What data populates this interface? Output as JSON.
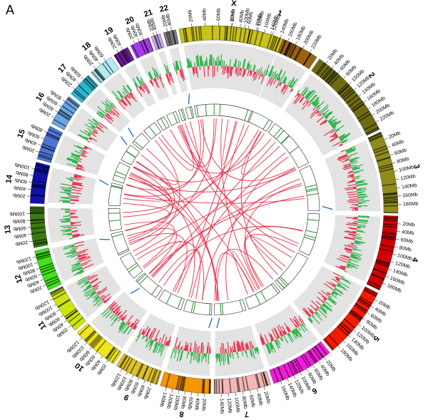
{
  "panel_label": "A",
  "chromosomes": [
    {
      "label": "1",
      "color": "#9a6212",
      "ticks": [
        "20Mb",
        "40Mb",
        "60Mb",
        "80Mb",
        "100Mb",
        "120Mb",
        "140Mb",
        "160Mb",
        "180Mb",
        "200Mb",
        "220Mb"
      ]
    },
    {
      "label": "2",
      "color": "#6e6a12",
      "ticks": [
        "20Mb",
        "40Mb",
        "60Mb",
        "80Mb",
        "100Mb",
        "120Mb",
        "140Mb",
        "160Mb",
        "180Mb",
        "200Mb",
        "220Mb"
      ]
    },
    {
      "label": "3",
      "color": "#8e8c1a",
      "ticks": [
        "20Mb",
        "40Mb",
        "60Mb",
        "80Mb",
        "100Mb",
        "120Mb",
        "140Mb",
        "160Mb",
        "180Mb"
      ]
    },
    {
      "label": "4",
      "color": "#d10000",
      "ticks": [
        "20Mb",
        "40Mb",
        "60Mb",
        "80Mb",
        "100Mb",
        "120Mb",
        "140Mb",
        "160Mb",
        "180Mb"
      ]
    },
    {
      "label": "5",
      "color": "#f21a00",
      "ticks": [
        "20Mb",
        "40Mb",
        "60Mb",
        "80Mb",
        "100Mb",
        "120Mb",
        "140Mb",
        "160Mb",
        "180Mb"
      ]
    },
    {
      "label": "6",
      "color": "#f31cda",
      "ticks": [
        "20Mb",
        "40Mb",
        "60Mb",
        "80Mb",
        "100Mb",
        "120Mb",
        "140Mb",
        "160Mb"
      ]
    },
    {
      "label": "7",
      "color": "#f5b6b6",
      "ticks": [
        "20Mb",
        "40Mb",
        "60Mb",
        "80Mb",
        "100Mb",
        "120Mb",
        "140Mb"
      ]
    },
    {
      "label": "8",
      "color": "#f79500",
      "ticks": [
        "20Mb",
        "40Mb",
        "60Mb",
        "80Mb",
        "100Mb",
        "120Mb",
        "140Mb"
      ]
    },
    {
      "label": "9",
      "color": "#dcc22a",
      "ticks": [
        "20Mb",
        "40Mb",
        "60Mb",
        "80Mb",
        "100Mb",
        "120Mb"
      ]
    },
    {
      "label": "10",
      "color": "#f1e51a",
      "ticks": [
        "20Mb",
        "40Mb",
        "60Mb",
        "80Mb",
        "100Mb",
        "120Mb"
      ]
    },
    {
      "label": "11",
      "color": "#cfe510",
      "ticks": [
        "20Mb",
        "40Mb",
        "60Mb",
        "80Mb",
        "100Mb",
        "120Mb"
      ]
    },
    {
      "label": "12",
      "color": "#42e21a",
      "ticks": [
        "20Mb",
        "40Mb",
        "60Mb",
        "80Mb",
        "100Mb",
        "120Mb"
      ]
    },
    {
      "label": "13",
      "color": "#3a7a14",
      "ticks": [
        "20Mb",
        "40Mb",
        "60Mb",
        "80Mb",
        "100Mb"
      ]
    },
    {
      "label": "14",
      "color": "#1212a8",
      "ticks": [
        "20Mb",
        "40Mb",
        "60Mb",
        "80Mb",
        "100Mb"
      ]
    },
    {
      "label": "15",
      "color": "#4e74d8",
      "ticks": [
        "20Mb",
        "40Mb",
        "60Mb",
        "80Mb"
      ]
    },
    {
      "label": "16",
      "color": "#6aa6e4",
      "ticks": [
        "20Mb",
        "40Mb",
        "60Mb",
        "80Mb"
      ]
    },
    {
      "label": "17",
      "color": "#2ab6d0",
      "ticks": [
        "20Mb",
        "40Mb",
        "60Mb"
      ]
    },
    {
      "label": "18",
      "color": "#b2ecf4",
      "ticks": [
        "20Mb",
        "40Mb",
        "60Mb"
      ]
    },
    {
      "label": "19",
      "color": "#6a1a96",
      "ticks": [
        "20Mb",
        "40Mb"
      ]
    },
    {
      "label": "20",
      "color": "#a43ae6",
      "ticks": [
        "20Mb",
        "40Mb",
        "60Mb"
      ]
    },
    {
      "label": "21",
      "color": "#c7a4e8",
      "ticks": [
        "20Mb",
        "40Mb"
      ]
    },
    {
      "label": "22",
      "color": "#7a7a7a",
      "ticks": [
        "20Mb",
        "40Mb"
      ]
    },
    {
      "label": "X",
      "color": "#c9c21a",
      "ticks": [
        "20Mb",
        "40Mb",
        "60Mb",
        "80Mb",
        "100Mb",
        "120Mb",
        "140Mb"
      ]
    }
  ],
  "colors": {
    "gain": "#2fb34a",
    "loss": "#e8344e",
    "links": "#e2233e",
    "inner_marks": "#2f8a2f",
    "blue_track": "#2e6fd2",
    "track_bg": "#e3e3e3"
  }
}
